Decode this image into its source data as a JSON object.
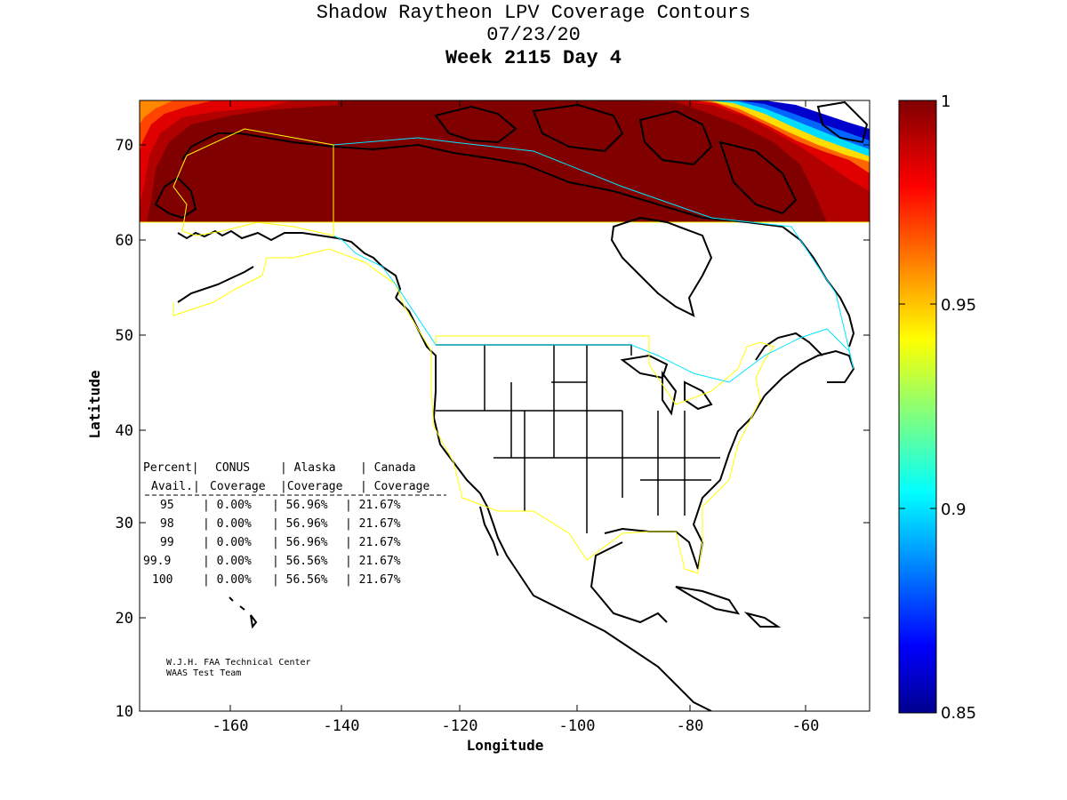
{
  "title": {
    "line1": "Shadow Raytheon LPV Coverage Contours",
    "line2": "07/23/20",
    "line3": "Week 2115 Day 4"
  },
  "axes": {
    "xlabel": "Longitude",
    "ylabel": "Latitude",
    "xticks": [
      "-160",
      "-140",
      "-120",
      "-100",
      "-80",
      "-60"
    ],
    "yticks": [
      "70",
      "60",
      "50",
      "40",
      "30",
      "20",
      "10"
    ]
  },
  "colorbar": {
    "ticks": [
      "1",
      "0.95",
      "0.9",
      "0.85"
    ],
    "colormap": "jet",
    "range": [
      0.85,
      1
    ]
  },
  "table": {
    "header1": [
      "Percent|",
      "CONUS",
      "| Alaska",
      "| Canada"
    ],
    "header2": [
      "Avail.|",
      "Coverage",
      "|Coverage",
      "| Coverage"
    ],
    "rows": [
      [
        "95",
        "| 0.00%",
        "| 56.96%",
        "| 21.67%"
      ],
      [
        "98",
        "| 0.00%",
        "| 56.96%",
        "| 21.67%"
      ],
      [
        "99",
        "| 0.00%",
        "| 56.96%",
        "| 21.67%"
      ],
      [
        "99.9",
        "| 0.00%",
        "| 56.56%",
        "| 21.67%"
      ],
      [
        "100",
        "| 0.00%",
        "| 56.56%",
        "| 21.67%"
      ]
    ]
  },
  "credits": {
    "line1": "W.J.H. FAA Technical Center",
    "line2": "WAAS Test Team"
  },
  "chart_data": {
    "type": "heatmap",
    "title": "Shadow Raytheon LPV Coverage Contours",
    "xlabel": "Longitude",
    "ylabel": "Latitude",
    "xlim": [
      -175,
      -50
    ],
    "ylim": [
      10,
      75
    ],
    "clim": [
      0.85,
      1
    ],
    "coverage_band_lat": [
      61.5,
      75
    ],
    "colors": {
      "dark_red": "#800000",
      "red": "#cc0000",
      "orange": "#ff8800",
      "yellow": "#ffdd00",
      "cyan": "#00ddff",
      "blue": "#0000cc",
      "service_yellow": "#ffff00",
      "service_cyan": "#00e5ff"
    }
  }
}
